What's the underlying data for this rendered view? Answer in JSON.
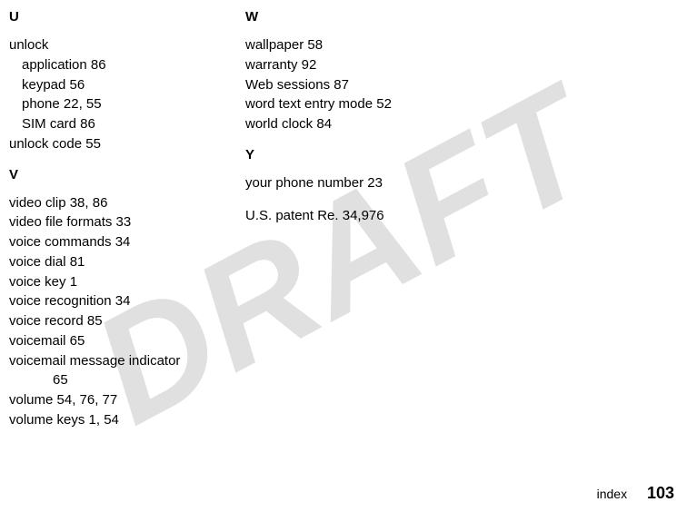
{
  "watermark": "DRAFT",
  "left": {
    "U": {
      "letter": "U",
      "unlock": "unlock",
      "application": "application  86",
      "keypad": "keypad  56",
      "phone": "phone  22, 55",
      "sim": "SIM card  86",
      "unlock_code": "unlock code  55"
    },
    "V": {
      "letter": "V",
      "video_clip": "video clip  38, 86",
      "video_formats": "video file formats  33",
      "voice_commands": "voice commands  34",
      "voice_dial": "voice dial  81",
      "voice_key": "voice key  1",
      "voice_recog": "voice recognition  34",
      "voice_record": "voice record  85",
      "voicemail": "voicemail  65",
      "voicemail_ind": "voicemail message indicator",
      "voicemail_ind_pg": "65",
      "volume": "volume  54, 76, 77",
      "volume_keys": "volume keys  1, 54"
    }
  },
  "right": {
    "W": {
      "letter": "W",
      "wallpaper": "wallpaper  58",
      "warranty": "warranty  92",
      "web": "Web sessions  87",
      "word": "word text entry mode  52",
      "world": "world clock  84"
    },
    "Y": {
      "letter": "Y",
      "your_phone": "your phone number  23"
    },
    "patent": "U.S. patent Re. 34,976"
  },
  "footer": {
    "label": "index",
    "page": "103"
  }
}
